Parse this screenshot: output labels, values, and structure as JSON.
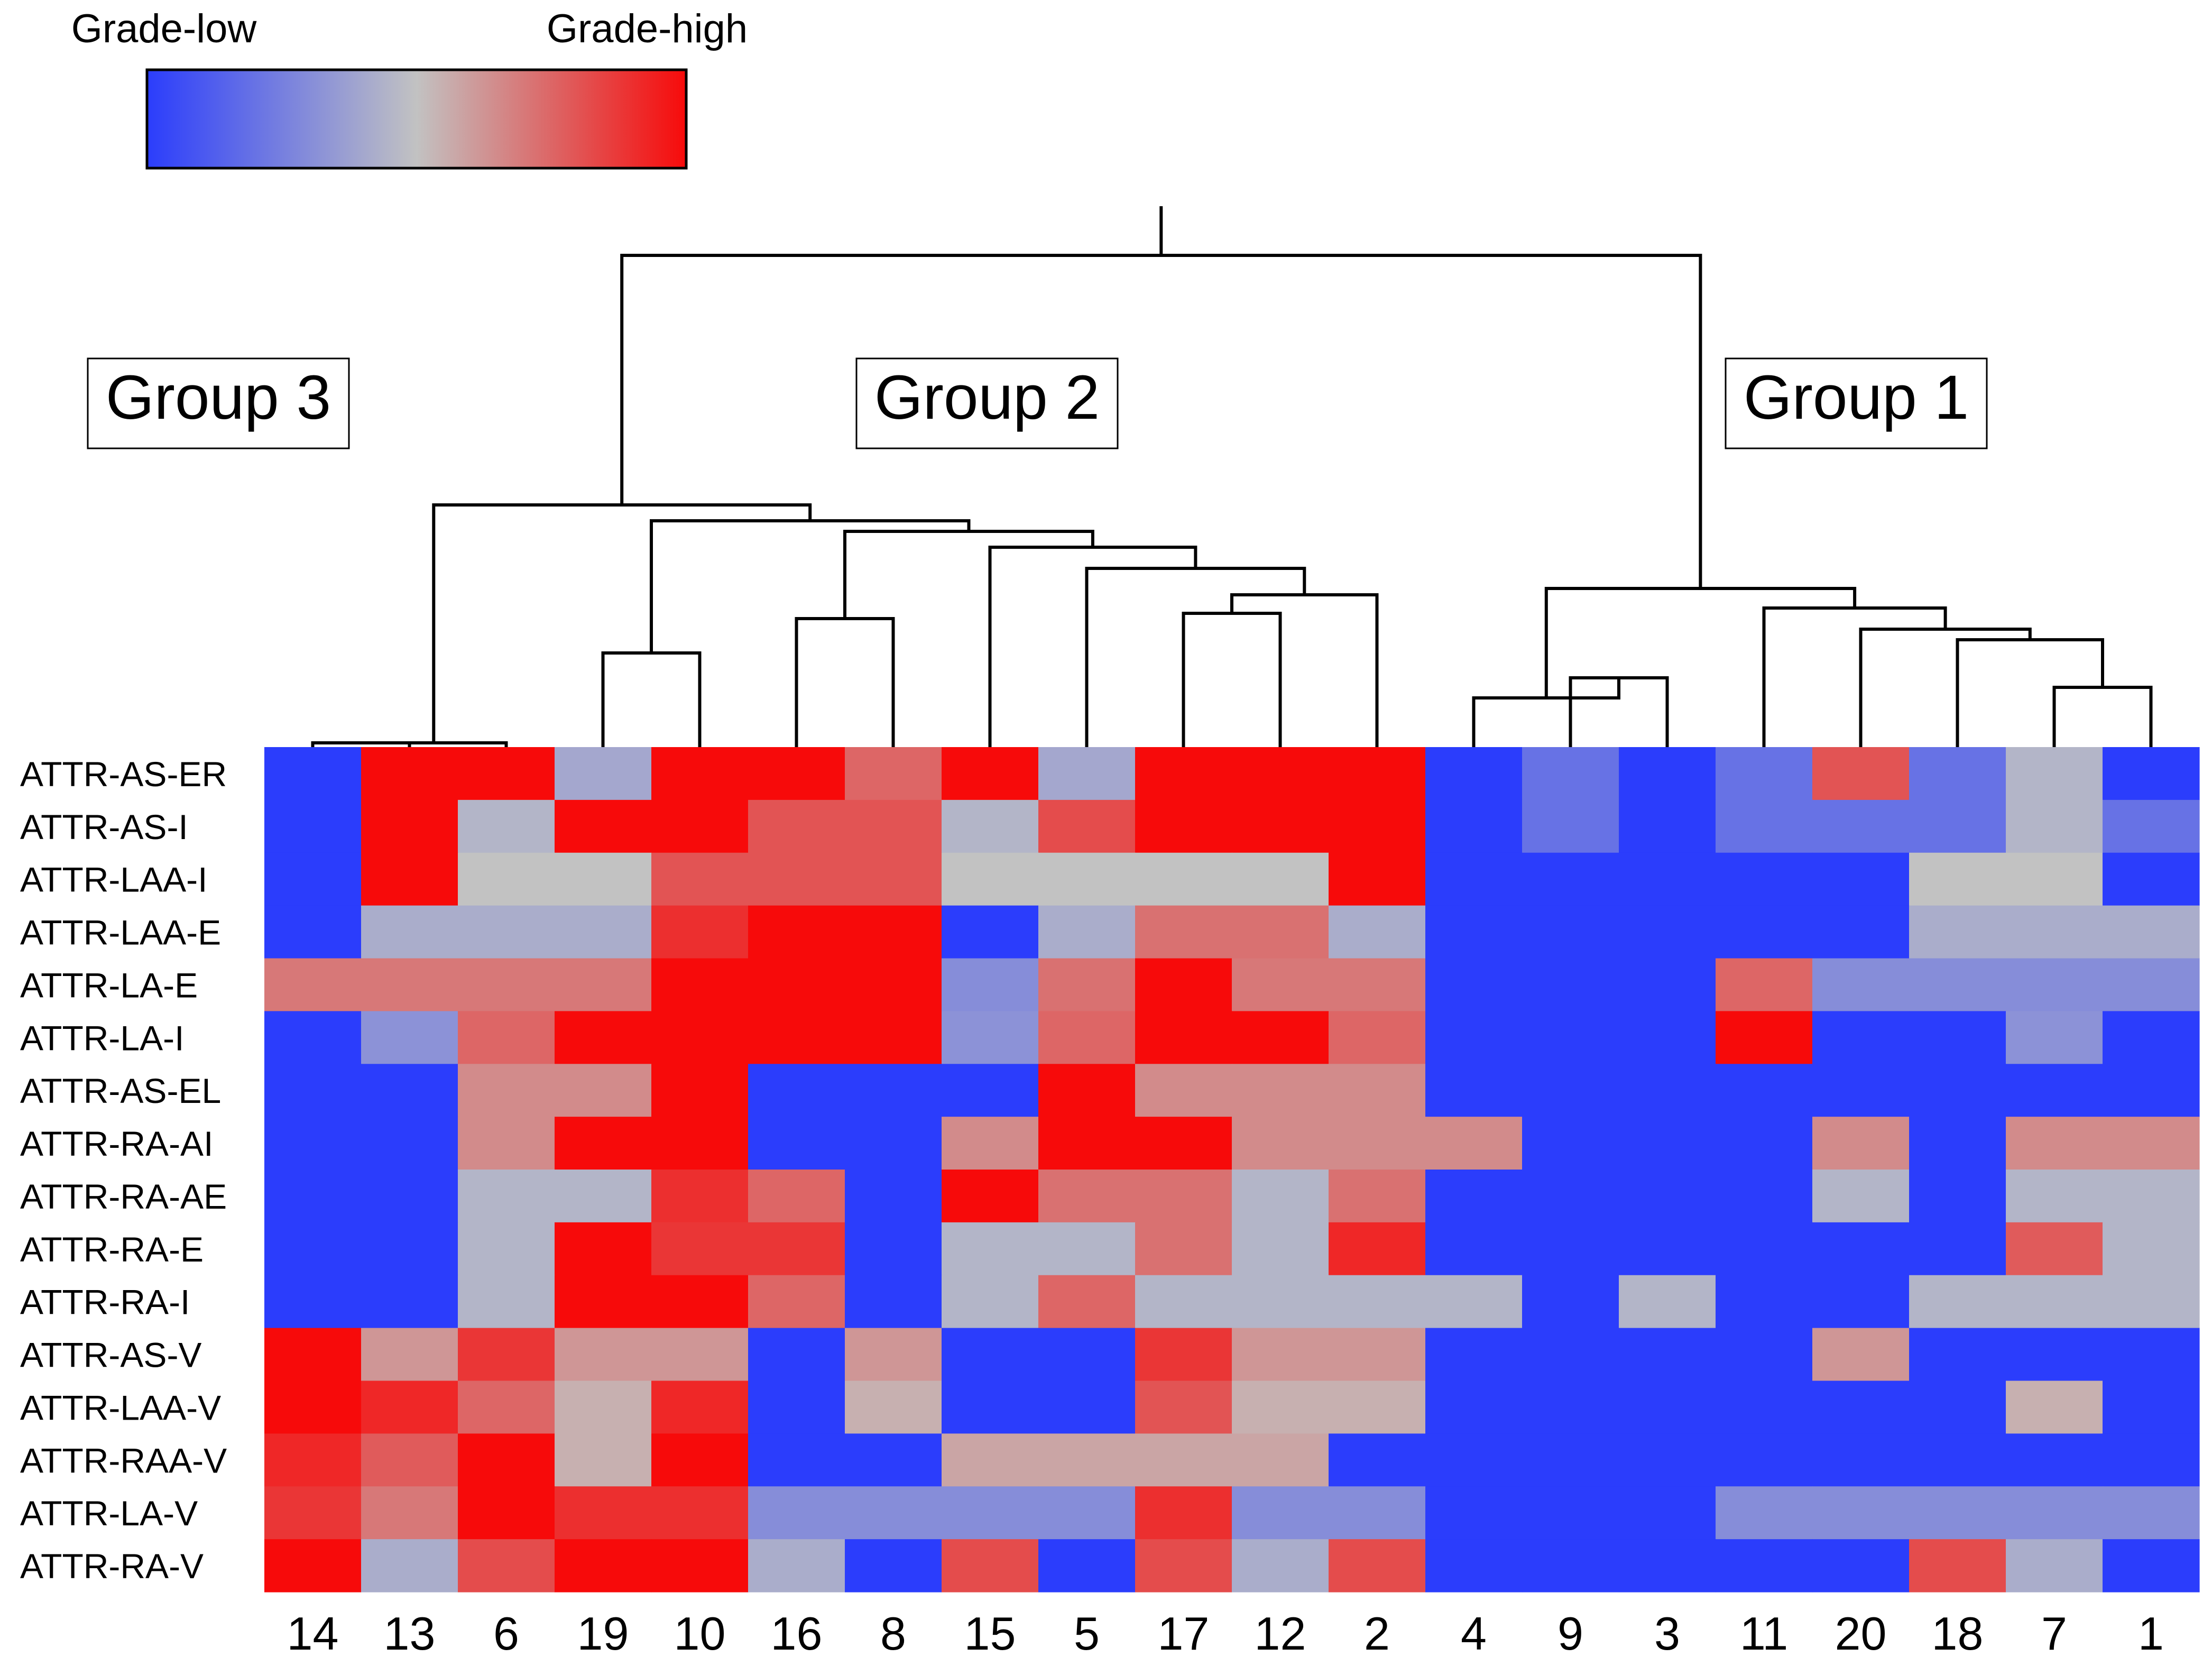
{
  "colors": {
    "low": "#2b3dfc",
    "mid": "#c2c2c2",
    "high": "#f70a0a",
    "line": "#000000"
  },
  "chart_data": {
    "type": "heatmap",
    "legend": {
      "low_label": "Grade-low",
      "high_label": "Grade-high"
    },
    "group_labels": [
      "Group 3",
      "Group 2",
      "Group 1"
    ],
    "rows": [
      "ATTR-AS-ER",
      "ATTR-AS-I",
      "ATTR-LAA-I",
      "ATTR-LAA-E",
      "ATTR-LA-E",
      "ATTR-LA-I",
      "ATTR-AS-EL",
      "ATTR-RA-AI",
      "ATTR-RA-AE",
      "ATTR-RA-E",
      "ATTR-RA-I",
      "ATTR-AS-V",
      "ATTR-LAA-V",
      "ATTR-RAA-V",
      "ATTR-LA-V",
      "ATTR-RA-V"
    ],
    "columns": [
      "14",
      "13",
      "6",
      "19",
      "10",
      "16",
      "8",
      "15",
      "5",
      "17",
      "12",
      "2",
      "4",
      "9",
      "3",
      "11",
      "20",
      "18",
      "7",
      "1"
    ],
    "value_scale": [
      0,
      1
    ],
    "values": [
      [
        0,
        1,
        1,
        0.4,
        1,
        1,
        0.75,
        1,
        0.4,
        1,
        1,
        1,
        0,
        0.2,
        0,
        0.2,
        0.8,
        0.2,
        0.45,
        0
      ],
      [
        0,
        1,
        0.45,
        1,
        1,
        0.8,
        0.8,
        0.45,
        0.82,
        1,
        1,
        1,
        0,
        0.2,
        0,
        0.2,
        0.2,
        0.2,
        0.45,
        0.2
      ],
      [
        0,
        1,
        0.5,
        0.5,
        0.8,
        0.8,
        0.8,
        0.5,
        0.5,
        0.5,
        0.5,
        1,
        0,
        0,
        0,
        0,
        0,
        0.5,
        0.5,
        0
      ],
      [
        0,
        0.42,
        0.42,
        0.42,
        0.9,
        1,
        1,
        0,
        0.42,
        0.72,
        0.72,
        0.42,
        0,
        0,
        0,
        0,
        0,
        0.42,
        0.42,
        0.42
      ],
      [
        0.7,
        0.7,
        0.7,
        0.7,
        1,
        1,
        1,
        0.3,
        0.72,
        1,
        0.7,
        0.7,
        0,
        0,
        0,
        0.75,
        0.3,
        0.3,
        0.3,
        0.3
      ],
      [
        0,
        0.32,
        0.75,
        1,
        1,
        1,
        1,
        0.32,
        0.75,
        1,
        1,
        0.75,
        0,
        0,
        0,
        1,
        0,
        0,
        0.32,
        0
      ],
      [
        0,
        0,
        0.65,
        0.65,
        1,
        0,
        0,
        0,
        1,
        0.65,
        0.65,
        0.65,
        0,
        0,
        0,
        0,
        0,
        0,
        0,
        0
      ],
      [
        0,
        0,
        0.65,
        1,
        1,
        0,
        0,
        0.65,
        1,
        1,
        0.65,
        0.65,
        0.65,
        0,
        0,
        0,
        0.65,
        0,
        0.65,
        0.65
      ],
      [
        0,
        0,
        0.45,
        0.45,
        0.9,
        0.75,
        0,
        1,
        0.72,
        0.72,
        0.45,
        0.72,
        0,
        0,
        0,
        0,
        0.45,
        0,
        0.45,
        0.45
      ],
      [
        0,
        0,
        0.45,
        1,
        0.88,
        0.88,
        0,
        0.45,
        0.45,
        0.72,
        0.45,
        0.92,
        0,
        0,
        0,
        0,
        0,
        0,
        0.78,
        0.45
      ],
      [
        0,
        0,
        0.45,
        1,
        1,
        0.75,
        0,
        0.45,
        0.75,
        0.45,
        0.45,
        0.45,
        0.45,
        0,
        0.45,
        0,
        0,
        0.45,
        0.45,
        0.45
      ],
      [
        1,
        0.62,
        0.88,
        0.62,
        0.62,
        0,
        0.62,
        0,
        0,
        0.88,
        0.62,
        0.62,
        0,
        0,
        0,
        0,
        0.62,
        0,
        0,
        0
      ],
      [
        1,
        0.92,
        0.75,
        0.55,
        0.92,
        0,
        0.55,
        0,
        0,
        0.8,
        0.55,
        0.55,
        0,
        0,
        0,
        0,
        0,
        0,
        0.55,
        0
      ],
      [
        0.92,
        0.78,
        1,
        0.55,
        1,
        0,
        0,
        0.58,
        0.58,
        0.58,
        0.58,
        0,
        0,
        0,
        0,
        0,
        0,
        0,
        0,
        0
      ],
      [
        0.88,
        0.7,
        1,
        0.9,
        0.9,
        0.3,
        0.3,
        0.3,
        0.3,
        0.9,
        0.3,
        0.3,
        0,
        0,
        0,
        0.3,
        0.3,
        0.3,
        0.3,
        0.3
      ],
      [
        1,
        0.42,
        0.82,
        1,
        1,
        0.42,
        0,
        0.82,
        0,
        0.82,
        0.42,
        0.82,
        0,
        0,
        0,
        0,
        0,
        0.82,
        0.42,
        0
      ]
    ],
    "dendrogram": [
      [
        0,
        1
      ],
      [
        20,
        2
      ],
      [
        3,
        4
      ],
      [
        5,
        6
      ],
      [
        9,
        10
      ],
      [
        24,
        11
      ],
      [
        8,
        25
      ],
      [
        7,
        26
      ],
      [
        27,
        23
      ],
      [
        22,
        28
      ],
      [
        21,
        29
      ],
      [
        13,
        14
      ],
      [
        12,
        31
      ],
      [
        18,
        19
      ],
      [
        17,
        33
      ],
      [
        16,
        34
      ],
      [
        15,
        35
      ],
      [
        32,
        36
      ],
      [
        30,
        37
      ]
    ],
    "grid": false
  }
}
